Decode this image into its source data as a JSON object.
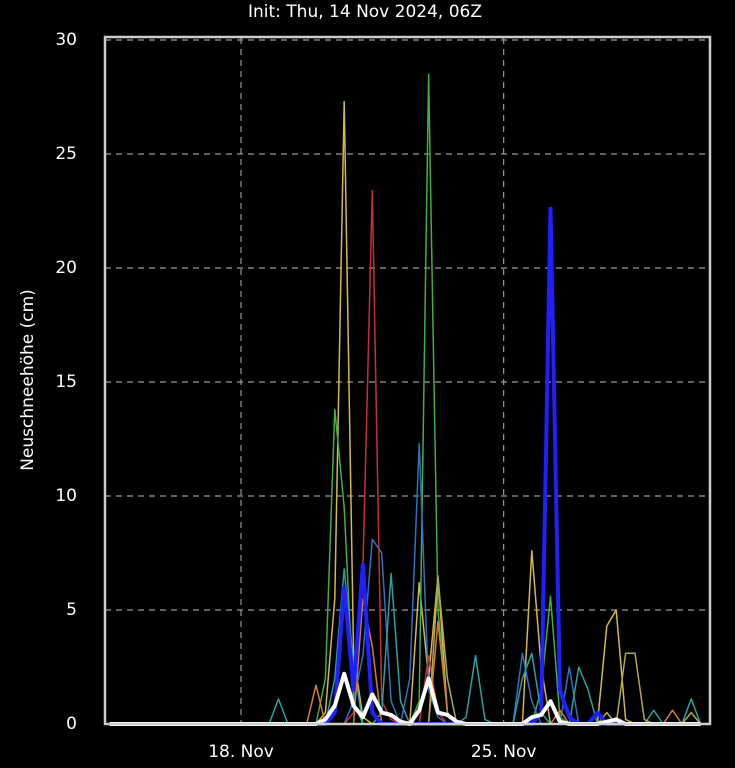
{
  "chart_data": {
    "type": "line",
    "title": "Init: Thu, 14 Nov 2024, 06Z",
    "y_label": "Neuschneehöhe (cm)",
    "x": [
      6,
      12,
      18,
      24,
      30,
      36,
      42,
      48,
      54,
      60,
      66,
      72,
      78,
      84,
      90,
      96,
      102,
      108,
      114,
      120,
      126,
      132,
      138,
      144,
      150,
      156,
      162,
      168,
      174,
      180,
      186,
      192,
      198,
      204,
      210,
      216,
      222,
      228,
      234,
      240,
      246,
      252,
      258,
      264,
      270,
      276,
      282,
      288,
      294,
      300,
      306,
      312,
      318,
      324,
      330,
      336,
      342,
      348,
      354,
      360,
      366,
      372,
      378,
      384
    ],
    "xlim": [
      3,
      390
    ],
    "xticks": [
      {
        "value": 90,
        "label": "18. Nov"
      },
      {
        "value": 258,
        "label": "25. Nov"
      }
    ],
    "ylim": [
      0,
      30
    ],
    "yticks": [
      0,
      5,
      10,
      15,
      20,
      25,
      30
    ],
    "grid": true,
    "series": [
      {
        "color": "#d4b84a",
        "line_width": 1.5,
        "values": [
          0,
          0,
          0,
          0,
          0,
          0,
          0,
          0,
          0,
          0,
          0,
          0,
          0,
          0,
          0,
          0,
          0,
          0,
          0,
          0,
          0,
          0,
          0,
          0.5,
          5.5,
          27.3,
          3,
          0.3,
          0,
          0,
          0,
          0,
          0,
          6.2,
          2,
          6.5,
          0.5,
          0,
          0,
          0,
          0,
          0,
          0,
          0,
          0,
          7.6,
          2.5,
          0,
          0,
          0,
          0,
          0,
          0,
          4.3,
          5,
          0.2,
          0,
          0,
          0,
          0,
          0,
          0,
          0,
          0
        ]
      },
      {
        "color": "#c83030",
        "line_width": 1.5,
        "values": [
          0,
          0,
          0,
          0,
          0,
          0,
          0,
          0,
          0,
          0,
          0,
          0,
          0,
          0,
          0,
          0,
          0,
          0,
          0,
          0,
          0,
          0,
          0,
          0,
          0,
          0,
          0.5,
          6.8,
          23.4,
          1,
          0.2,
          0,
          0,
          0,
          3,
          0.5,
          0,
          0,
          0,
          0,
          0,
          0,
          0,
          0,
          0,
          0,
          0,
          0,
          0,
          0,
          0,
          0,
          0,
          0,
          0,
          0,
          0,
          0,
          0,
          0,
          0,
          0,
          0,
          0
        ]
      },
      {
        "color": "#40b040",
        "line_width": 1.5,
        "values": [
          0,
          0,
          0,
          0,
          0,
          0,
          0,
          0,
          0,
          0,
          0,
          0,
          0,
          0,
          0,
          0,
          0,
          0,
          0,
          0,
          0,
          0,
          0,
          2,
          13.8,
          9.5,
          1,
          0,
          0,
          0,
          0,
          0,
          0,
          1,
          28.5,
          5,
          0.5,
          0,
          0,
          0,
          0,
          0,
          0,
          0,
          0,
          0,
          1.5,
          5.6,
          0.3,
          0,
          0,
          0,
          0,
          0,
          0,
          0,
          0,
          0,
          0,
          0,
          0,
          0,
          0,
          0
        ]
      },
      {
        "color": "#3070c0",
        "line_width": 1.5,
        "values": [
          0,
          0,
          0,
          0,
          0,
          0,
          0,
          0,
          0,
          0,
          0,
          0,
          0,
          0,
          0,
          0,
          0,
          0,
          0,
          0,
          0,
          0,
          0,
          0,
          0,
          0,
          1,
          3,
          8.1,
          7.5,
          1,
          0,
          2,
          12.3,
          1.5,
          0.3,
          0,
          0,
          0,
          0,
          0,
          0,
          0,
          0,
          3.1,
          1,
          0,
          0,
          0,
          2.5,
          0,
          0,
          0,
          0,
          0,
          0,
          0,
          0,
          0,
          0,
          0,
          0,
          0,
          0
        ]
      },
      {
        "color": "#2aa0a0",
        "line_width": 1.5,
        "values": [
          0,
          0,
          0,
          0,
          0,
          0,
          0,
          0,
          0,
          0,
          0,
          0,
          0,
          0,
          0,
          0,
          0,
          0,
          1.1,
          0,
          0,
          0,
          0,
          0,
          2,
          6.8,
          2.6,
          0,
          0,
          0.5,
          6.6,
          1,
          0,
          0,
          0,
          0,
          0,
          0,
          0.3,
          3,
          0.2,
          0,
          0,
          0,
          2,
          3.1,
          0.5,
          0,
          0,
          0,
          2.5,
          1.5,
          0,
          0,
          0,
          0,
          0,
          0,
          0.6,
          0,
          0,
          0,
          1.1,
          0
        ]
      },
      {
        "color": "#d08030",
        "line_width": 1.5,
        "values": [
          0,
          0,
          0,
          0,
          0,
          0,
          0,
          0,
          0,
          0,
          0,
          0,
          0,
          0,
          0,
          0,
          0,
          0,
          0,
          0,
          0,
          0,
          1.7,
          0,
          0,
          0,
          0,
          5.5,
          3.4,
          0,
          0,
          0,
          0,
          0,
          0,
          4.5,
          0.5,
          0,
          0,
          0,
          0,
          0,
          0,
          0,
          0,
          0,
          0,
          0,
          0.6,
          0,
          0,
          0,
          0,
          0,
          0,
          0,
          0,
          0,
          0,
          0,
          0.6,
          0,
          0,
          0
        ]
      },
      {
        "color": "#b0a850",
        "line_width": 1.5,
        "values": [
          0,
          0,
          0,
          0,
          0,
          0,
          0,
          0,
          0,
          0,
          0,
          0,
          0,
          0,
          0,
          0,
          0,
          0,
          0,
          0,
          0,
          0,
          0,
          0,
          0,
          0,
          0,
          0,
          0,
          0,
          0,
          0,
          0,
          0,
          0,
          6.4,
          2,
          0,
          0,
          0,
          0,
          0,
          0,
          0,
          0,
          0,
          0,
          0,
          0,
          0,
          0,
          0,
          0,
          0.5,
          0,
          3.1,
          3.1,
          0.2,
          0,
          0,
          0,
          0,
          0.5,
          0
        ]
      },
      {
        "color": "#2020ff",
        "line_width": 4,
        "values": [
          0,
          0,
          0,
          0,
          0,
          0,
          0,
          0,
          0,
          0,
          0,
          0,
          0,
          0,
          0,
          0,
          0,
          0,
          0,
          0,
          0,
          0,
          0,
          0,
          0.5,
          6,
          1.5,
          7,
          0.5,
          0,
          0,
          0,
          0,
          0,
          0,
          0,
          0,
          0,
          0,
          0,
          0,
          0,
          0,
          0,
          0,
          0,
          0.5,
          22.6,
          1.5,
          0.3,
          0,
          0,
          0.5,
          0,
          0,
          0,
          0,
          0,
          0,
          0,
          0,
          0,
          0,
          0
        ]
      },
      {
        "color": "#ffffff",
        "line_width": 4,
        "values": [
          0,
          0,
          0,
          0,
          0,
          0,
          0,
          0,
          0,
          0,
          0,
          0,
          0,
          0,
          0,
          0,
          0,
          0,
          0,
          0,
          0,
          0,
          0,
          0.2,
          0.8,
          2.2,
          0.8,
          0.3,
          1.3,
          0.5,
          0.4,
          0.1,
          0,
          0.6,
          2,
          0.5,
          0.4,
          0.1,
          0,
          0,
          0,
          0,
          0,
          0,
          0,
          0.3,
          0.4,
          1,
          0.1,
          0,
          0,
          0,
          0,
          0.1,
          0.2,
          0,
          0,
          0,
          0,
          0,
          0,
          0,
          0,
          0
        ]
      }
    ]
  }
}
